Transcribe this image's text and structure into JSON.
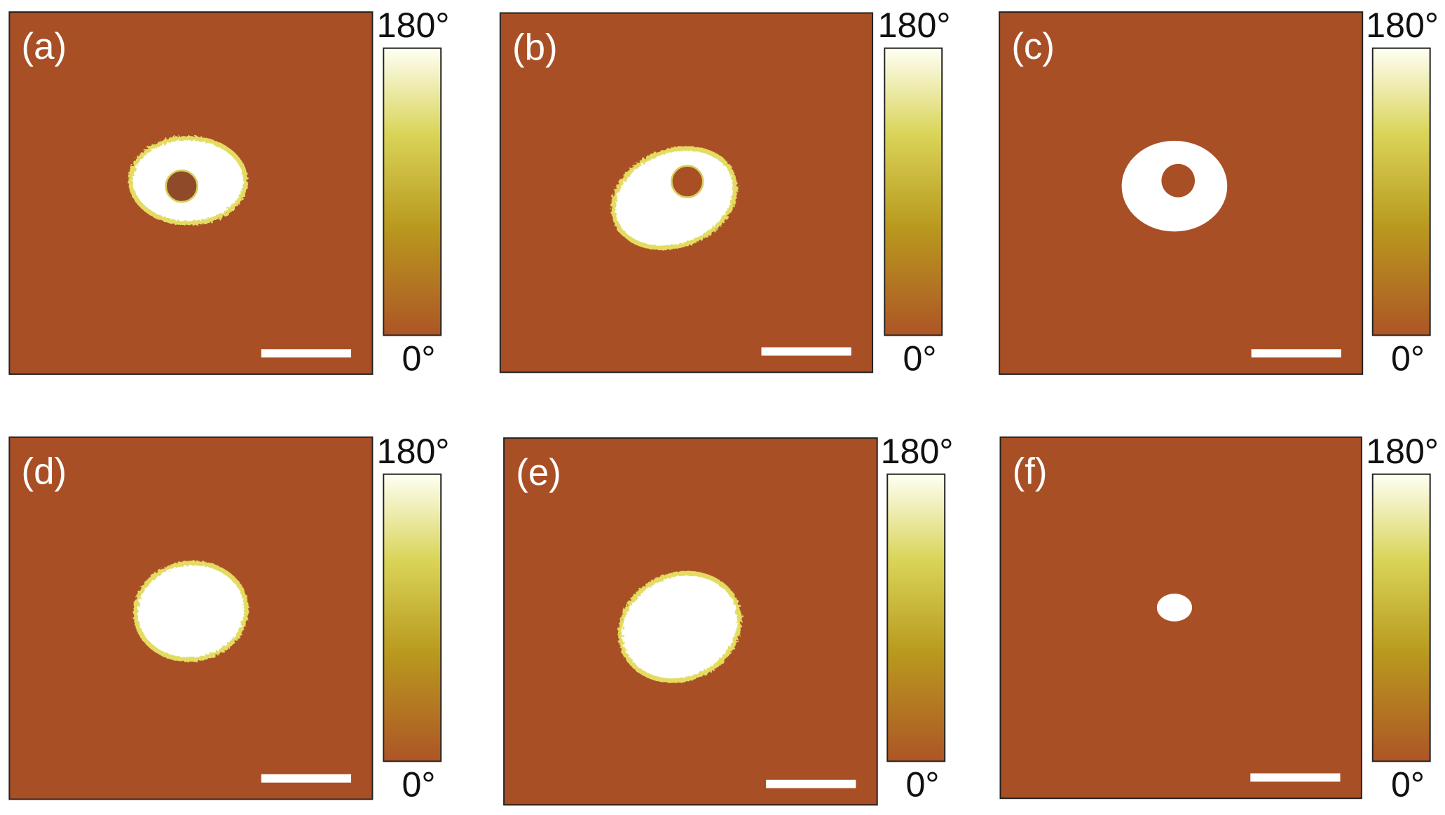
{
  "panels": [
    {
      "label": "(a)",
      "colorbar_max": "180°",
      "colorbar_min": "0°"
    },
    {
      "label": "(b)",
      "colorbar_max": "180°",
      "colorbar_min": "0°"
    },
    {
      "label": "(c)",
      "colorbar_max": "180°",
      "colorbar_min": "0°"
    },
    {
      "label": "(d)",
      "colorbar_max": "180°",
      "colorbar_min": "0°"
    },
    {
      "label": "(e)",
      "colorbar_max": "180°",
      "colorbar_min": "0°"
    },
    {
      "label": "(f)",
      "colorbar_max": "180°",
      "colorbar_min": "0°"
    }
  ]
}
